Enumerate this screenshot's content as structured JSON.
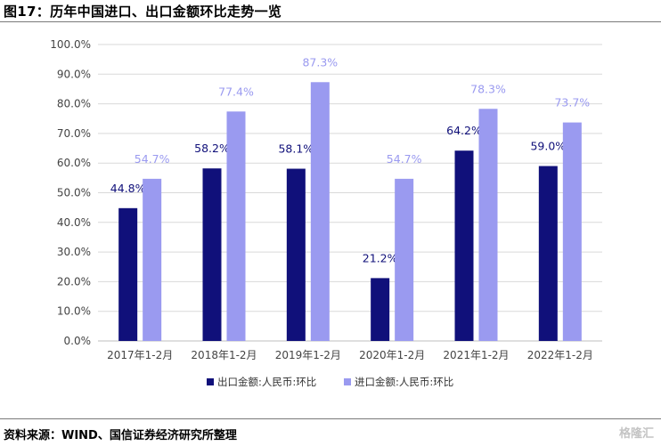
{
  "figure": {
    "title": "图17：历年中国进口、出口金额环比走势一览",
    "source": "资料来源：WIND、国信证券经济研究所整理",
    "watermark": "格隆汇"
  },
  "chart_data": {
    "type": "bar",
    "categories": [
      "2017年1-2月",
      "2018年1-2月",
      "2019年1-2月",
      "2020年1-2月",
      "2021年1-2月",
      "2022年1-2月"
    ],
    "series": [
      {
        "name": "出口金额:人民币:环比",
        "values": [
          44.8,
          58.2,
          58.1,
          21.2,
          64.2,
          59.0
        ],
        "color": "#10107a",
        "label_color": "#10107a"
      },
      {
        "name": "进口金额:人民币:环比",
        "values": [
          54.7,
          77.4,
          87.3,
          54.7,
          78.3,
          73.7
        ],
        "color": "#9a9af0",
        "label_color": "#9a9af0"
      }
    ],
    "data_labels": [
      [
        "44.8%",
        "58.2%",
        "58.1%",
        "21.2%",
        "64.2%",
        "59.0%"
      ],
      [
        "54.7%",
        "77.4%",
        "87.3%",
        "54.7%",
        "78.3%",
        "73.7%"
      ]
    ],
    "y_ticks": [
      "0.0%",
      "10.0%",
      "20.0%",
      "30.0%",
      "40.0%",
      "50.0%",
      "60.0%",
      "70.0%",
      "80.0%",
      "90.0%",
      "100.0%"
    ],
    "ylim": [
      0,
      100
    ],
    "grid": true,
    "legend_position": "bottom",
    "title": "",
    "xlabel": "",
    "ylabel": ""
  }
}
